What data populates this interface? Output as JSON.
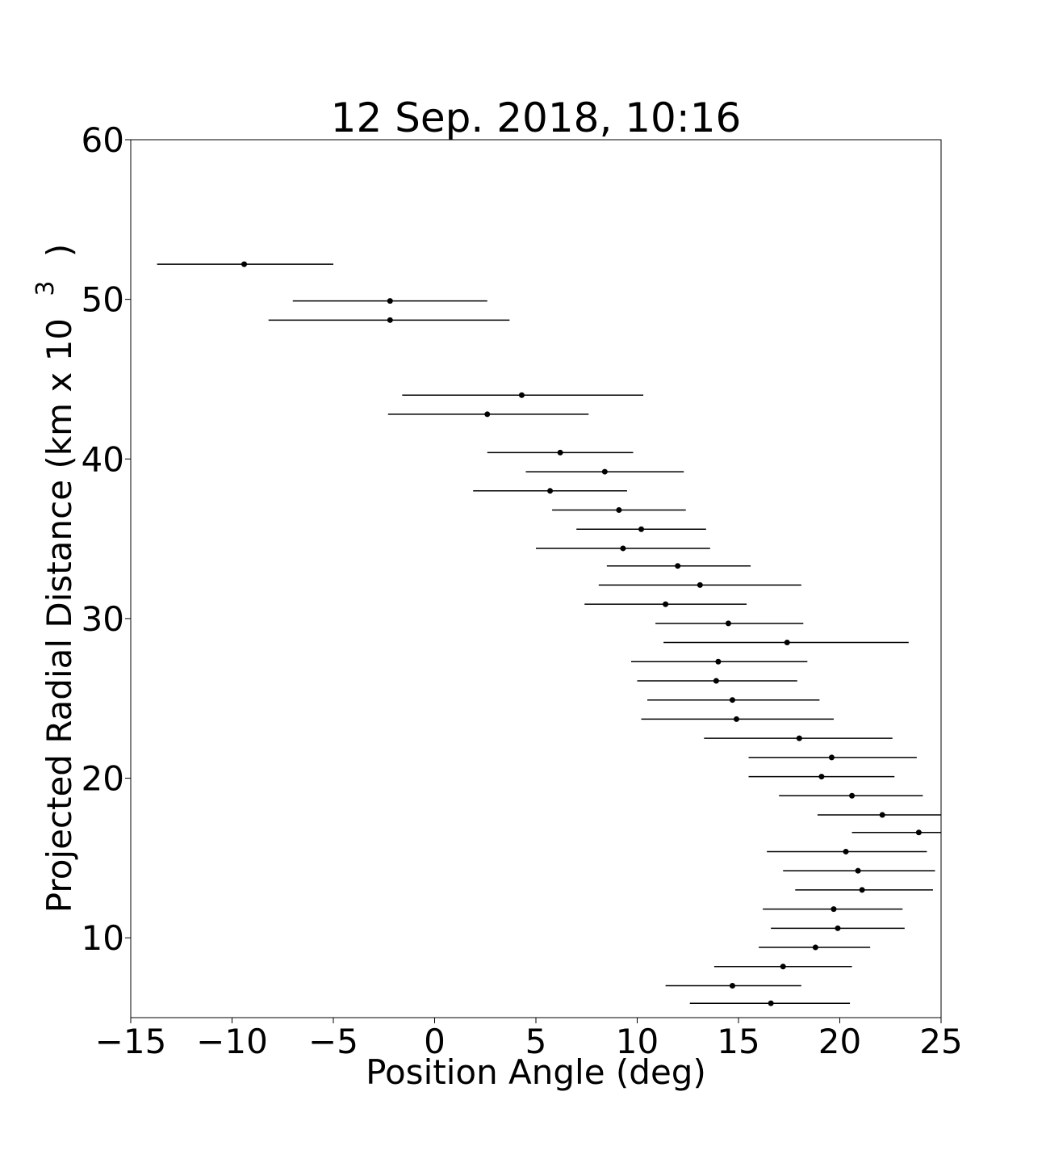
{
  "chart_data": {
    "type": "scatter",
    "title": "12 Sep. 2018, 10:16",
    "xlabel": "Position Angle (deg)",
    "ylabel": "Projected Radial Distance (km x 10",
    "ylabel_sup": "3",
    "ylabel_close": ")",
    "xlim": [
      -15,
      25
    ],
    "ylim": [
      5,
      60
    ],
    "xticks": [
      -15,
      -10,
      -5,
      0,
      5,
      10,
      15,
      20,
      25
    ],
    "yticks": [
      10,
      20,
      30,
      40,
      50,
      60
    ],
    "grid": false,
    "legend": "none",
    "marker_color": "#000000",
    "points": [
      {
        "x": -9.4,
        "y": 52.2,
        "xmin": -13.7,
        "xmax": -5.0
      },
      {
        "x": -2.2,
        "y": 49.9,
        "xmin": -7.0,
        "xmax": 2.6
      },
      {
        "x": -2.2,
        "y": 48.7,
        "xmin": -8.2,
        "xmax": 3.7
      },
      {
        "x": 4.3,
        "y": 44.0,
        "xmin": -1.6,
        "xmax": 10.3
      },
      {
        "x": 2.6,
        "y": 42.8,
        "xmin": -2.3,
        "xmax": 7.6
      },
      {
        "x": 6.2,
        "y": 40.4,
        "xmin": 2.6,
        "xmax": 9.8
      },
      {
        "x": 8.4,
        "y": 39.2,
        "xmin": 4.5,
        "xmax": 12.3
      },
      {
        "x": 5.7,
        "y": 38.0,
        "xmin": 1.9,
        "xmax": 9.5
      },
      {
        "x": 9.1,
        "y": 36.8,
        "xmin": 5.8,
        "xmax": 12.4
      },
      {
        "x": 10.2,
        "y": 35.6,
        "xmin": 7.0,
        "xmax": 13.4
      },
      {
        "x": 9.3,
        "y": 34.4,
        "xmin": 5.0,
        "xmax": 13.6
      },
      {
        "x": 12.0,
        "y": 33.3,
        "xmin": 8.5,
        "xmax": 15.6
      },
      {
        "x": 13.1,
        "y": 32.1,
        "xmin": 8.1,
        "xmax": 18.1
      },
      {
        "x": 11.4,
        "y": 30.9,
        "xmin": 7.4,
        "xmax": 15.4
      },
      {
        "x": 14.5,
        "y": 29.7,
        "xmin": 10.9,
        "xmax": 18.2
      },
      {
        "x": 17.4,
        "y": 28.5,
        "xmin": 11.3,
        "xmax": 23.4
      },
      {
        "x": 14.0,
        "y": 27.3,
        "xmin": 9.7,
        "xmax": 18.4
      },
      {
        "x": 13.9,
        "y": 26.1,
        "xmin": 10.0,
        "xmax": 17.9
      },
      {
        "x": 14.7,
        "y": 24.9,
        "xmin": 10.5,
        "xmax": 19.0
      },
      {
        "x": 14.9,
        "y": 23.7,
        "xmin": 10.2,
        "xmax": 19.7
      },
      {
        "x": 18.0,
        "y": 22.5,
        "xmin": 13.3,
        "xmax": 22.6
      },
      {
        "x": 19.6,
        "y": 21.3,
        "xmin": 15.5,
        "xmax": 23.8
      },
      {
        "x": 19.1,
        "y": 20.1,
        "xmin": 15.5,
        "xmax": 22.7
      },
      {
        "x": 20.6,
        "y": 18.9,
        "xmin": 17.0,
        "xmax": 24.1
      },
      {
        "x": 22.1,
        "y": 17.7,
        "xmin": 18.9,
        "xmax": 25.0
      },
      {
        "x": 23.9,
        "y": 16.6,
        "xmin": 20.6,
        "xmax": 25.0
      },
      {
        "x": 20.3,
        "y": 15.4,
        "xmin": 16.4,
        "xmax": 24.3
      },
      {
        "x": 20.9,
        "y": 14.2,
        "xmin": 17.2,
        "xmax": 24.7
      },
      {
        "x": 21.1,
        "y": 13.0,
        "xmin": 17.8,
        "xmax": 24.6
      },
      {
        "x": 19.7,
        "y": 11.8,
        "xmin": 16.2,
        "xmax": 23.1
      },
      {
        "x": 19.9,
        "y": 10.6,
        "xmin": 16.6,
        "xmax": 23.2
      },
      {
        "x": 18.8,
        "y": 9.4,
        "xmin": 16.0,
        "xmax": 21.5
      },
      {
        "x": 17.2,
        "y": 8.2,
        "xmin": 13.8,
        "xmax": 20.6
      },
      {
        "x": 14.7,
        "y": 7.0,
        "xmin": 11.4,
        "xmax": 18.1
      },
      {
        "x": 16.6,
        "y": 5.9,
        "xmin": 12.6,
        "xmax": 20.5
      }
    ]
  }
}
